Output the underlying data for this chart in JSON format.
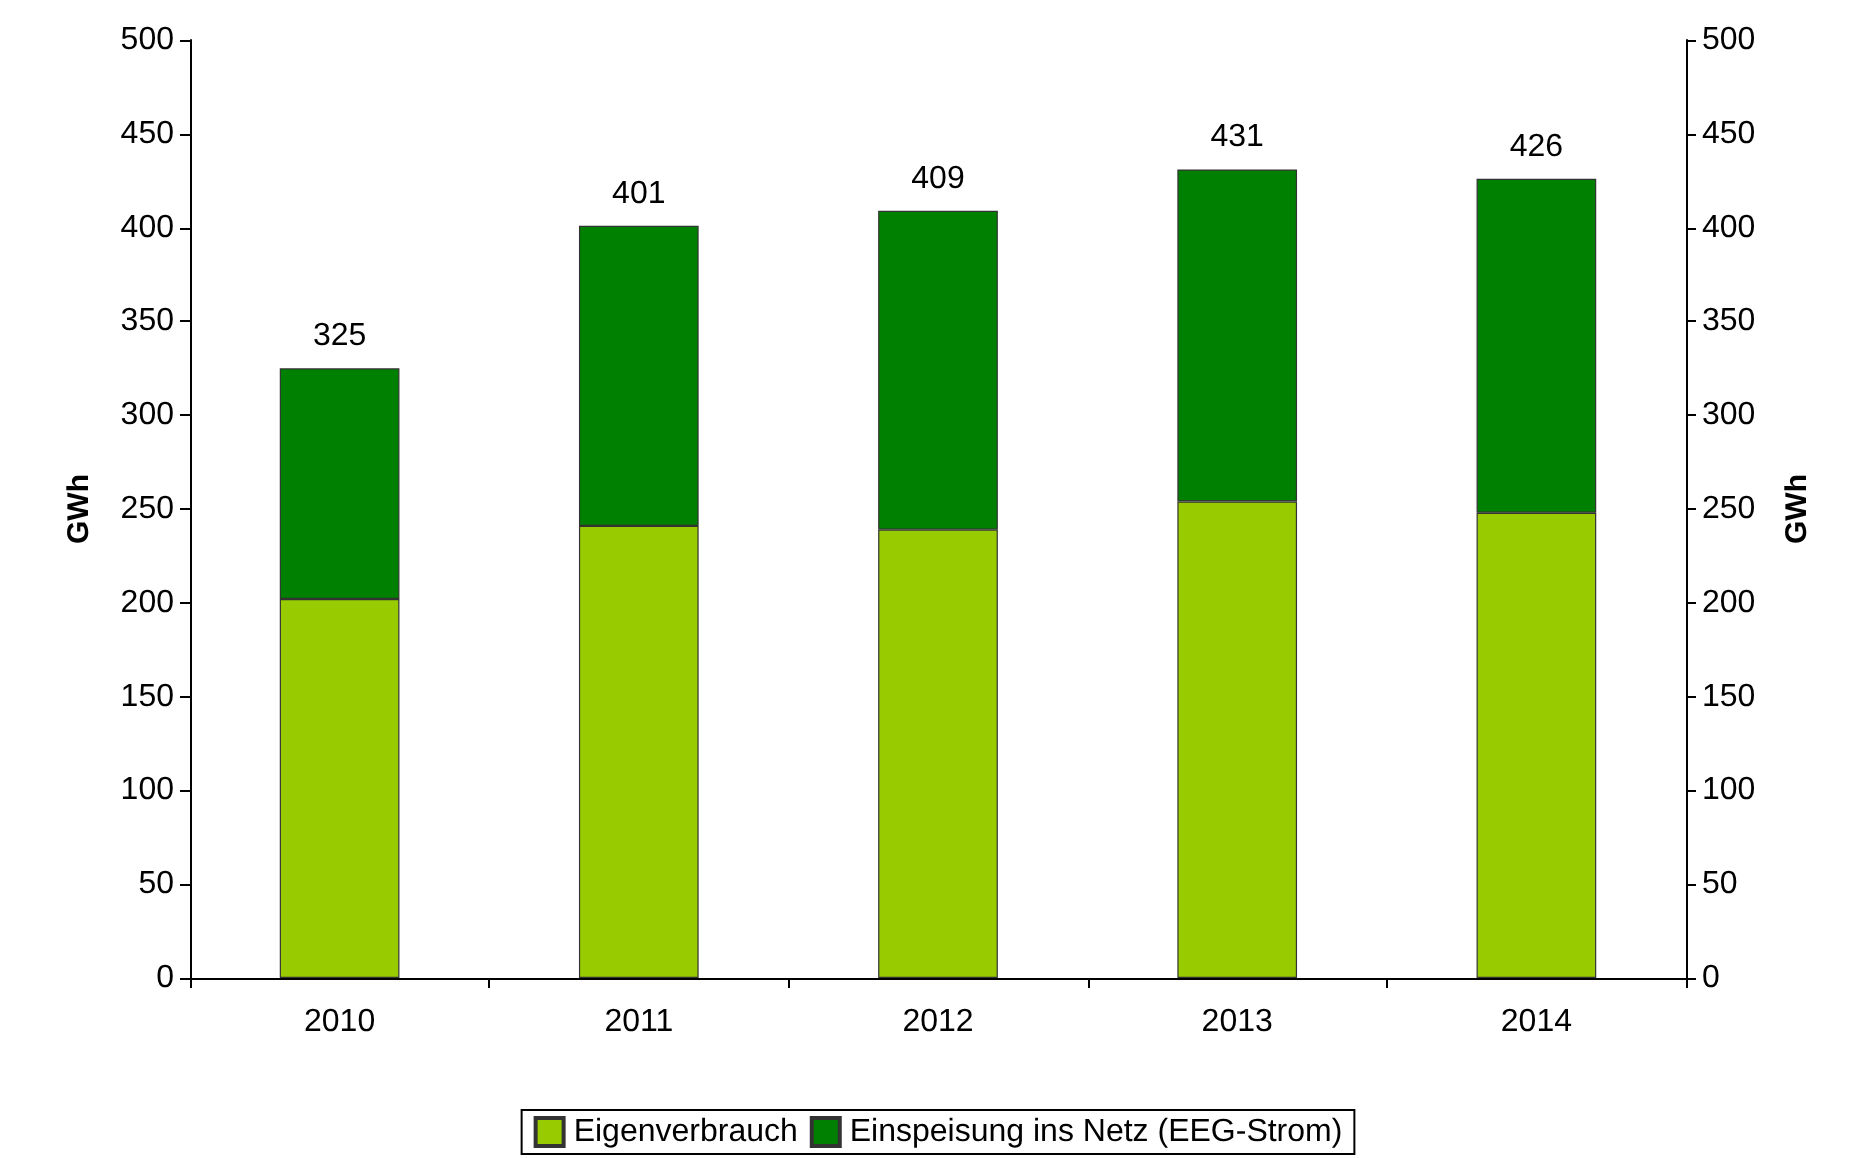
{
  "chart_data": {
    "type": "bar",
    "stacked": true,
    "categories": [
      "2010",
      "2011",
      "2012",
      "2013",
      "2014"
    ],
    "series": [
      {
        "name": "Eigenverbrauch",
        "color": "#99cc00",
        "values": [
          202,
          241,
          239,
          254,
          248
        ]
      },
      {
        "name": "Einspeisung ins Netz (EEG-Strom)",
        "color": "#008000",
        "values": [
          123,
          160,
          170,
          177,
          178
        ]
      }
    ],
    "totals": [
      "325",
      "401",
      "409",
      "431",
      "426"
    ],
    "ylabel": "GWh",
    "y2label": "GWh",
    "ylim": [
      0,
      500
    ],
    "yticks": [
      0,
      50,
      100,
      150,
      200,
      250,
      300,
      350,
      400,
      450,
      500
    ],
    "y2lim": [
      0,
      500
    ],
    "y2ticks": [
      0,
      50,
      100,
      150,
      200,
      250,
      300,
      350,
      400,
      450,
      500
    ],
    "grid": false,
    "legend": "bottom"
  }
}
